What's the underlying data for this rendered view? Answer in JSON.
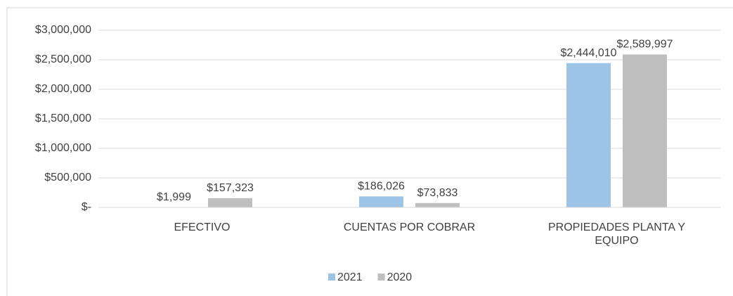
{
  "chart_data": {
    "type": "bar",
    "categories": [
      "EFECTIVO",
      "CUENTAS POR COBRAR",
      "PROPIEDADES PLANTA Y EQUIPO"
    ],
    "series": [
      {
        "name": "2021",
        "color": "#9dc3e6",
        "values": [
          1999,
          186026,
          2444010
        ],
        "value_labels": [
          "$1,999",
          "$186,026",
          "$2,444,010"
        ]
      },
      {
        "name": "2020",
        "color": "#bfbfbf",
        "values": [
          157323,
          73833,
          2589997
        ],
        "value_labels": [
          "$157,323",
          "$73,833",
          "$2,589,997"
        ]
      }
    ],
    "ylim": [
      0,
      3000000
    ],
    "yticks": [
      {
        "value": 0,
        "label": "$-"
      },
      {
        "value": 500000,
        "label": "$500,000"
      },
      {
        "value": 1000000,
        "label": "$1,000,000"
      },
      {
        "value": 1500000,
        "label": "$1,500,000"
      },
      {
        "value": 2000000,
        "label": "$2,000,000"
      },
      {
        "value": 2500000,
        "label": "$2,500,000"
      },
      {
        "value": 3000000,
        "label": "$3,000,000"
      }
    ],
    "grid": true,
    "legend": "bottom"
  }
}
